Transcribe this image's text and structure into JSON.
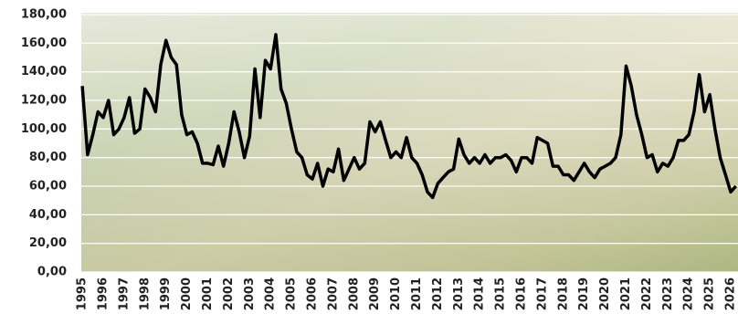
{
  "chart_data": {
    "type": "line",
    "color": "#000000",
    "grid": true,
    "x": [
      1995.0,
      1995.25,
      1995.5,
      1995.75,
      1996.0,
      1996.25,
      1996.5,
      1996.75,
      1997.0,
      1997.25,
      1997.5,
      1997.75,
      1998.0,
      1998.25,
      1998.5,
      1998.75,
      1999.0,
      1999.25,
      1999.5,
      1999.75,
      2000.0,
      2000.25,
      2000.5,
      2000.75,
      2001.0,
      2001.25,
      2001.5,
      2001.75,
      2002.0,
      2002.25,
      2002.5,
      2002.75,
      2003.0,
      2003.25,
      2003.5,
      2003.75,
      2004.0,
      2004.25,
      2004.5,
      2004.75,
      2005.0,
      2005.25,
      2005.5,
      2005.75,
      2006.0,
      2006.25,
      2006.5,
      2006.75,
      2007.0,
      2007.25,
      2007.5,
      2007.75,
      2008.0,
      2008.25,
      2008.5,
      2008.75,
      2009.0,
      2009.25,
      2009.5,
      2009.75,
      2010.0,
      2010.25,
      2010.5,
      2010.75,
      2011.0,
      2011.25,
      2011.5,
      2011.75,
      2012.0,
      2012.25,
      2012.5,
      2012.75,
      2013.0,
      2013.25,
      2013.5,
      2013.75,
      2014.0,
      2014.25,
      2014.5,
      2014.75,
      2015.0,
      2015.25,
      2015.5,
      2015.75,
      2016.0,
      2016.25,
      2016.5,
      2016.75,
      2017.0,
      2017.25,
      2017.5,
      2017.75,
      2018.0,
      2018.25,
      2018.5,
      2018.75,
      2019.0,
      2019.25,
      2019.5,
      2019.75,
      2020.0,
      2020.25,
      2020.5,
      2020.75,
      2021.0,
      2021.25,
      2021.5,
      2021.75,
      2022.0,
      2022.25,
      2022.5,
      2022.75,
      2023.0,
      2023.25,
      2023.5,
      2023.75,
      2024.0,
      2024.25,
      2024.5,
      2024.75,
      2025.0,
      2025.25,
      2025.5,
      2025.75,
      2026.0,
      2026.25
    ],
    "values": [
      130,
      82,
      96,
      112,
      108,
      120,
      96,
      100,
      108,
      122,
      97,
      100,
      128,
      122,
      112,
      145,
      162,
      150,
      145,
      110,
      96,
      98,
      90,
      76,
      76,
      75,
      88,
      74,
      90,
      112,
      98,
      80,
      95,
      142,
      108,
      148,
      142,
      166,
      128,
      118,
      100,
      84,
      80,
      68,
      65,
      76,
      60,
      72,
      70,
      86,
      64,
      72,
      80,
      72,
      76,
      105,
      98,
      105,
      92,
      80,
      84,
      80,
      94,
      80,
      76,
      68,
      56,
      52,
      62,
      66,
      70,
      72,
      93,
      82,
      76,
      80,
      76,
      82,
      76,
      80,
      80,
      82,
      78,
      70,
      80,
      80,
      76,
      94,
      92,
      90,
      74,
      74,
      68,
      68,
      64,
      70,
      76,
      70,
      66,
      72,
      74,
      76,
      80,
      96,
      144,
      130,
      110,
      96,
      80,
      82,
      70,
      76,
      74,
      80,
      92,
      92,
      96,
      112,
      138,
      112,
      124,
      100,
      80,
      68,
      56,
      60
    ],
    "xlim": [
      1994.95,
      2026.35
    ],
    "xticks": [
      1995,
      1996,
      1997,
      1998,
      1999,
      2000,
      2001,
      2002,
      2003,
      2004,
      2005,
      2006,
      2007,
      2008,
      2009,
      2010,
      2011,
      2012,
      2013,
      2014,
      2015,
      2016,
      2017,
      2018,
      2019,
      2020,
      2021,
      2022,
      2023,
      2024,
      2025,
      2026
    ],
    "ylim": [
      0,
      180
    ],
    "yticks": [
      {
        "value": 0,
        "label": "0,00"
      },
      {
        "value": 20,
        "label": "20,00"
      },
      {
        "value": 40,
        "label": "40,00"
      },
      {
        "value": 60,
        "label": "60,00"
      },
      {
        "value": 80,
        "label": "80,00"
      },
      {
        "value": 100,
        "label": "100,00"
      },
      {
        "value": 120,
        "label": "120,00"
      },
      {
        "value": 140,
        "label": "140,00"
      },
      {
        "value": 160,
        "label": "160,00"
      },
      {
        "value": 180,
        "label": "180,00"
      }
    ]
  }
}
